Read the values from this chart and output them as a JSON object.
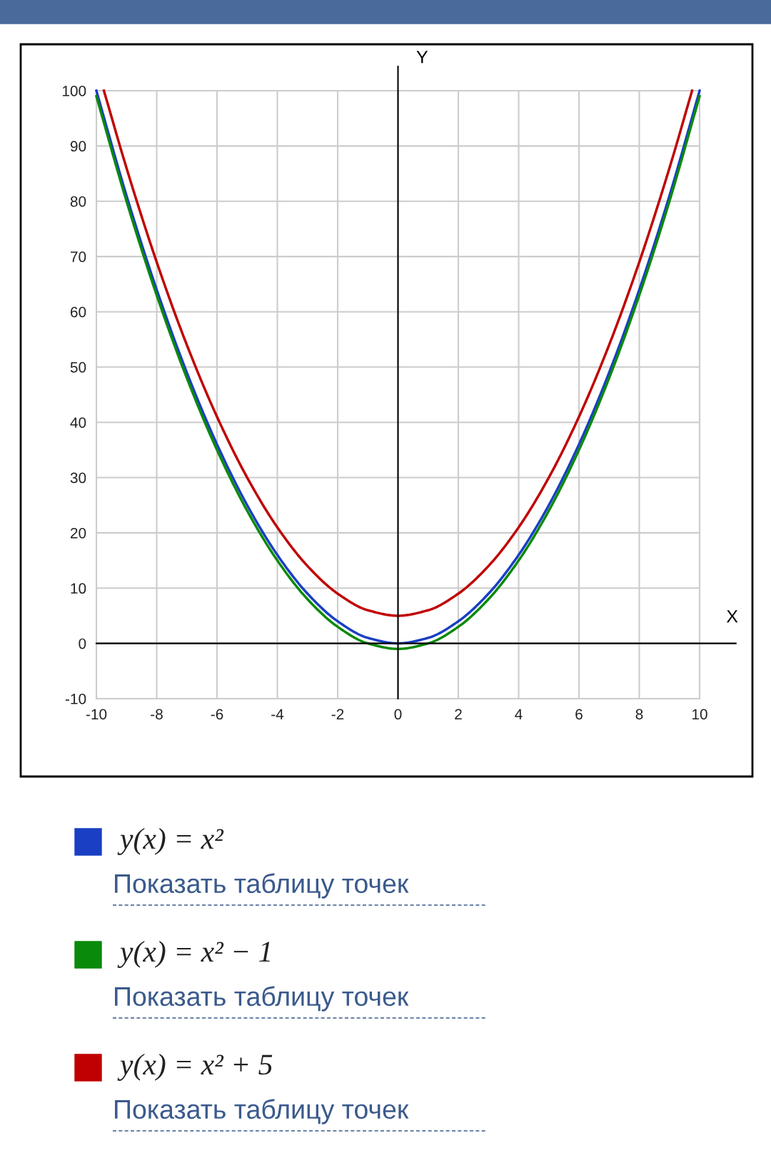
{
  "chart_data": {
    "type": "line",
    "xlabel": "X",
    "ylabel": "Y",
    "xlim": [
      -10,
      10
    ],
    "ylim": [
      -10,
      100
    ],
    "xticks": [
      -10,
      -8,
      -6,
      -4,
      -2,
      0,
      2,
      4,
      6,
      8,
      10
    ],
    "yticks": [
      -10,
      0,
      10,
      20,
      30,
      40,
      50,
      60,
      70,
      80,
      90,
      100
    ],
    "grid": true,
    "legend": "bottom",
    "marker": "none",
    "line_style": "solid",
    "x": [
      -10,
      -9,
      -8,
      -7,
      -6,
      -5,
      -4,
      -3,
      -2,
      -1,
      0,
      1,
      2,
      3,
      4,
      5,
      6,
      7,
      8,
      9,
      10
    ],
    "series": [
      {
        "name": "y(x) = x²",
        "color": "#1a3fc4",
        "values": [
          100,
          81,
          64,
          49,
          36,
          25,
          16,
          9,
          4,
          1,
          0,
          1,
          4,
          9,
          16,
          25,
          36,
          49,
          64,
          81,
          100
        ]
      },
      {
        "name": "y(x) = x² − 1",
        "color": "#0a8a0a",
        "values": [
          99,
          80,
          63,
          48,
          35,
          24,
          15,
          8,
          3,
          0,
          -1,
          0,
          3,
          8,
          15,
          24,
          35,
          48,
          63,
          80,
          99
        ]
      },
      {
        "name": "y(x) = x² + 5",
        "color": "#c00000",
        "x": [
          -9.75,
          -9,
          -8,
          -7,
          -6,
          -5,
          -4,
          -3,
          -2,
          -1,
          0,
          1,
          2,
          3,
          4,
          5,
          6,
          7,
          8,
          9,
          9.75
        ],
        "values": [
          100,
          86,
          69,
          54,
          41,
          30,
          21,
          14,
          9,
          6,
          5,
          6,
          9,
          14,
          21,
          30,
          41,
          54,
          69,
          86,
          100
        ]
      }
    ],
    "annotations": [
      "Показать таблицу точек",
      "Показать таблицу точек",
      "Показать таблицу точек"
    ]
  }
}
